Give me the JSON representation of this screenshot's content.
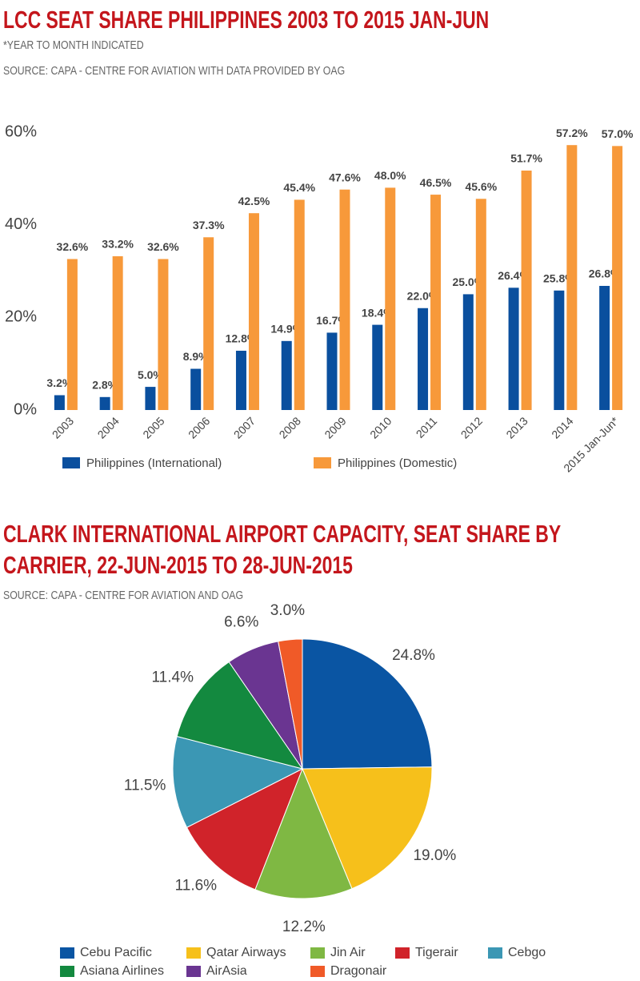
{
  "chart_data": [
    {
      "type": "bar",
      "title": "LCC SEAT SHARE PHILIPPINES 2003 TO 2015 JAN-JUN",
      "subtitle": "*YEAR TO MONTH INDICATED",
      "source": "SOURCE: CAPA - CENTRE FOR AVIATION WITH DATA PROVIDED BY OAG",
      "categories": [
        "2003",
        "2004",
        "2005",
        "2006",
        "2007",
        "2008",
        "2009",
        "2010",
        "2011",
        "2012",
        "2013",
        "2014",
        "2015 Jan-Jun*"
      ],
      "series": [
        {
          "name": "Philippines (International)",
          "color": "#0a4f9e",
          "values": [
            3.2,
            2.8,
            5.0,
            8.9,
            12.8,
            14.9,
            16.7,
            18.4,
            22.0,
            25.0,
            26.4,
            25.8,
            26.8
          ],
          "value_labels": [
            "3.2%",
            "2.8%",
            "5.0%",
            "8.9%",
            "12.8%",
            "14.9%",
            "16.7%",
            "18.4%",
            "22.0%",
            "25.0%",
            "26.4%",
            "25.8%",
            "26.8%"
          ]
        },
        {
          "name": "Philippines (Domestic)",
          "color": "#f7993a",
          "values": [
            32.6,
            33.2,
            32.6,
            37.3,
            42.5,
            45.4,
            47.6,
            48.0,
            46.5,
            45.6,
            51.7,
            57.2,
            57.0
          ],
          "value_labels": [
            "32.6%",
            "33.2%",
            "32.6%",
            "37.3%",
            "42.5%",
            "45.4%",
            "47.6%",
            "48.0%",
            "46.5%",
            "45.6%",
            "51.7%",
            "57.2%",
            "57.0%"
          ]
        }
      ],
      "ylim": [
        0,
        60
      ],
      "yticks": [
        {
          "value": 0,
          "label": "0%"
        },
        {
          "value": 20,
          "label": "20%"
        },
        {
          "value": 40,
          "label": "40%"
        },
        {
          "value": 60,
          "label": "60%"
        }
      ],
      "grid": false
    },
    {
      "type": "pie",
      "title": "CLARK INTERNATIONAL AIRPORT CAPACITY, SEAT SHARE BY CARRIER, 22-JUN-2015 TO 28-JUN-2015",
      "source": "SOURCE:  CAPA - CENTRE FOR AVIATION AND OAG",
      "categories": [
        "Cebu Pacific",
        "Qatar Airways",
        "Jin Air",
        "Tigerair",
        "Cebgo",
        "Asiana Airlines",
        "AirAsia",
        "Dragonair"
      ],
      "values": [
        24.8,
        19.0,
        12.2,
        11.6,
        11.5,
        11.4,
        6.6,
        3.0
      ],
      "value_labels": [
        "24.8%",
        "19.0%",
        "12.2%",
        "11.6%",
        "11.5%",
        "11.4%",
        "6.6%",
        "3.0%"
      ],
      "colors": [
        "#0a55a3",
        "#f6c01b",
        "#7fb843",
        "#d0232a",
        "#3b97b4",
        "#13893f",
        "#6a3591",
        "#f05a28"
      ]
    }
  ]
}
